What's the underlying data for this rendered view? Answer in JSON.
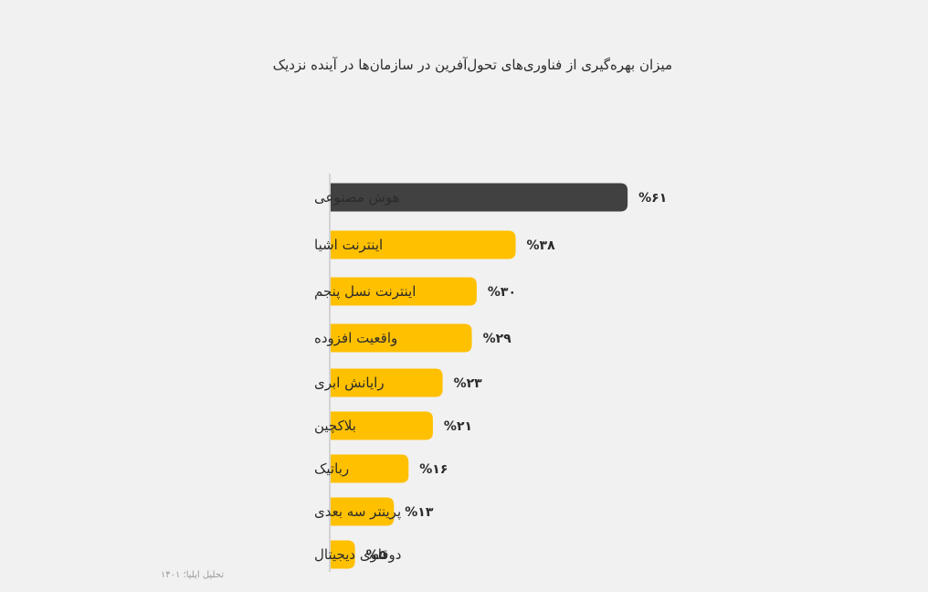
{
  "chart_data": {
    "type": "bar",
    "orientation": "horizontal",
    "title": "میزان بهره‌گیری از فناوری‌های تحول‌آفرین در سازمان‌ها در آینده نزدیک",
    "source": "تحلیل ایلیا؛ ۱۴۰۱",
    "categories": [
      "هوش مصنوعی",
      "اینترنت اشیا",
      "اینترنت نسل پنجم",
      "واقعیت افزوده",
      "رایانش ابری",
      "بلاکچین",
      "رباتیک",
      "پرینتر سه بعدی",
      "دوقلوی دیجیتال"
    ],
    "values": [
      61,
      38,
      30,
      29,
      23,
      21,
      16,
      13,
      5
    ],
    "value_labels": [
      "%۶۱",
      "%۳۸",
      "%۳۰",
      "%۲۹",
      "%۲۳",
      "%۲۱",
      "%۱۶",
      "%۱۳",
      "%۵"
    ],
    "colors": {
      "highlight": "#414141",
      "default": "#ffc000",
      "axis": "#b5b5b5"
    },
    "highlight_index": 0,
    "grid": false,
    "legend": "none"
  }
}
